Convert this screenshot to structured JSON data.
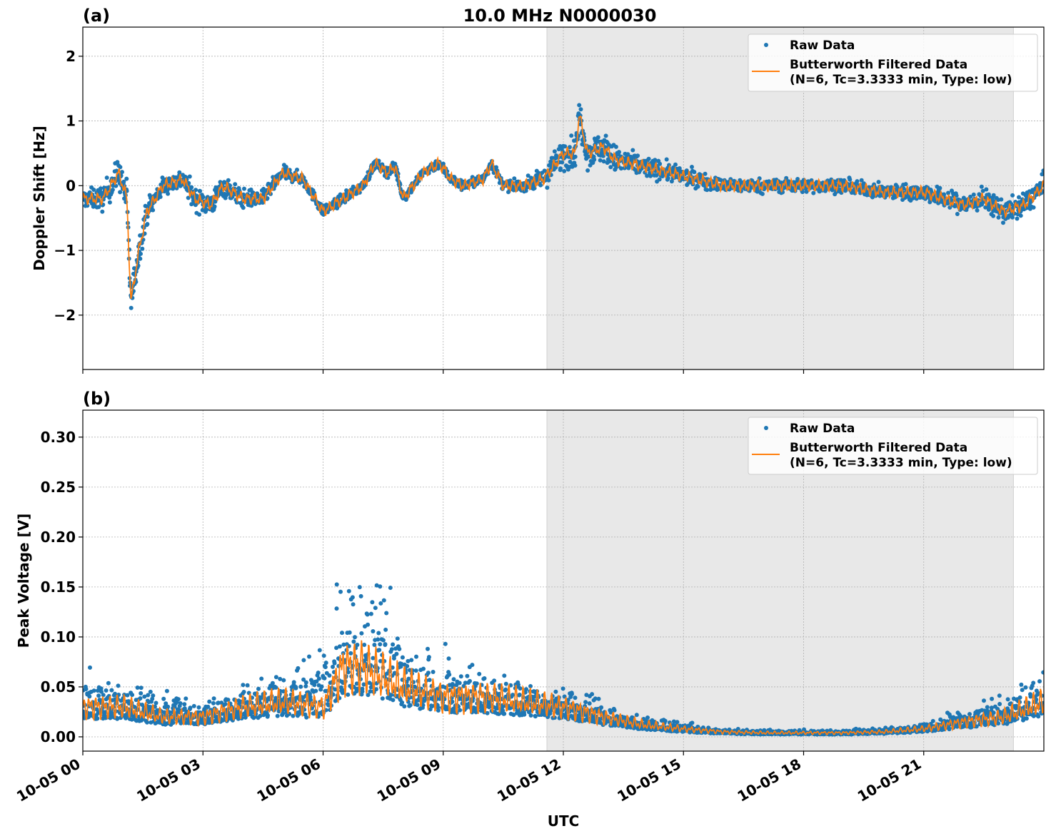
{
  "chart_data": [
    {
      "type": "scatter",
      "panel_label": "(a)",
      "title": "10.0 MHz N0000030",
      "xlabel": "",
      "ylabel": "Doppler Shift [Hz]",
      "xlim_hours": [
        0,
        24
      ],
      "ylim": [
        -2.84,
        2.45
      ],
      "yticks": [
        2,
        1,
        0,
        -1,
        -2
      ],
      "ytick_labels": [
        "2",
        "1",
        "0",
        "−1",
        "−2"
      ],
      "grid": true,
      "legend_position": "top-right",
      "legend": [
        "Raw Data",
        "Butterworth Filtered Data",
        "(N=6, Tc=3.3333 min, Type: low)"
      ],
      "shaded_region_hours": [
        11.59,
        23.24
      ],
      "filtered_keypoints": [
        [
          0,
          -0.2
        ],
        [
          0.5,
          -0.2
        ],
        [
          0.9,
          0.2
        ],
        [
          1.1,
          -0.2
        ],
        [
          1.2,
          -1.8
        ],
        [
          1.4,
          -1.0
        ],
        [
          1.6,
          -0.4
        ],
        [
          2.0,
          0.0
        ],
        [
          2.5,
          0.1
        ],
        [
          2.8,
          -0.2
        ],
        [
          3.2,
          -0.3
        ],
        [
          3.5,
          0.0
        ],
        [
          4.0,
          -0.2
        ],
        [
          4.5,
          -0.2
        ],
        [
          5.0,
          0.2
        ],
        [
          5.5,
          0.1
        ],
        [
          6.0,
          -0.4
        ],
        [
          6.5,
          -0.2
        ],
        [
          7.0,
          0.0
        ],
        [
          7.3,
          0.35
        ],
        [
          7.6,
          0.2
        ],
        [
          7.8,
          0.3
        ],
        [
          8.0,
          -0.2
        ],
        [
          8.5,
          0.2
        ],
        [
          8.9,
          0.35
        ],
        [
          9.2,
          0.1
        ],
        [
          9.5,
          0.0
        ],
        [
          10.0,
          0.1
        ],
        [
          10.2,
          0.35
        ],
        [
          10.5,
          0.0
        ],
        [
          11,
          0.0
        ],
        [
          11.5,
          0.1
        ],
        [
          12,
          0.5
        ],
        [
          12.3,
          0.5
        ],
        [
          12.4,
          1.1
        ],
        [
          12.6,
          0.5
        ],
        [
          13,
          0.6
        ],
        [
          13.3,
          0.4
        ],
        [
          14,
          0.3
        ],
        [
          15,
          0.15
        ],
        [
          16,
          0.0
        ],
        [
          17,
          0.0
        ],
        [
          18,
          0.0
        ],
        [
          19,
          0.0
        ],
        [
          20,
          -0.1
        ],
        [
          21,
          -0.1
        ],
        [
          22,
          -0.3
        ],
        [
          22.5,
          -0.2
        ],
        [
          23,
          -0.4
        ],
        [
          23.5,
          -0.3
        ],
        [
          24,
          0.0
        ]
      ],
      "raw_spread_keypoints": [
        [
          0,
          0.25
        ],
        [
          1.1,
          0.5
        ],
        [
          1.5,
          0.4
        ],
        [
          2,
          0.25
        ],
        [
          3,
          0.35
        ],
        [
          5,
          0.2
        ],
        [
          6,
          0.15
        ],
        [
          11,
          0.15
        ],
        [
          12,
          0.45
        ],
        [
          13,
          0.45
        ],
        [
          14,
          0.3
        ],
        [
          16,
          0.2
        ],
        [
          20,
          0.2
        ],
        [
          22,
          0.3
        ],
        [
          24,
          0.35
        ]
      ]
    },
    {
      "type": "scatter",
      "panel_label": "(b)",
      "xlabel": "UTC",
      "ylabel": "Peak Voltage [V]",
      "xlim_hours": [
        0,
        24
      ],
      "ylim": [
        -0.0143,
        0.327
      ],
      "yticks": [
        0.3,
        0.25,
        0.2,
        0.15,
        0.1,
        0.05,
        0.0
      ],
      "ytick_labels": [
        "0.30",
        "0.25",
        "0.20",
        "0.15",
        "0.10",
        "0.05",
        "0.00"
      ],
      "xtick_hours": [
        0,
        3,
        6,
        9,
        12,
        15,
        18,
        21
      ],
      "xtick_labels": [
        "10-05 00",
        "10-05 03",
        "10-05 06",
        "10-05 09",
        "10-05 12",
        "10-05 15",
        "10-05 18",
        "10-05 21"
      ],
      "grid": true,
      "legend_position": "top-right",
      "legend": [
        "Raw Data",
        "Butterworth Filtered Data",
        "(N=6, Tc=3.3333 min, Type: low)"
      ],
      "shaded_region_hours": [
        11.59,
        23.24
      ],
      "filtered_keypoints": [
        [
          0,
          0.03
        ],
        [
          1,
          0.03
        ],
        [
          2,
          0.02
        ],
        [
          3,
          0.02
        ],
        [
          4,
          0.03
        ],
        [
          5,
          0.035
        ],
        [
          6,
          0.03
        ],
        [
          6.5,
          0.07
        ],
        [
          7,
          0.07
        ],
        [
          7.5,
          0.06
        ],
        [
          8,
          0.05
        ],
        [
          9,
          0.04
        ],
        [
          10,
          0.04
        ],
        [
          11,
          0.035
        ],
        [
          12,
          0.03
        ],
        [
          13,
          0.02
        ],
        [
          14,
          0.012
        ],
        [
          15,
          0.008
        ],
        [
          16,
          0.005
        ],
        [
          17,
          0.004
        ],
        [
          18,
          0.004
        ],
        [
          19,
          0.004
        ],
        [
          20,
          0.005
        ],
        [
          21,
          0.008
        ],
        [
          22,
          0.015
        ],
        [
          23,
          0.02
        ],
        [
          24,
          0.035
        ]
      ],
      "raw_spread_keypoints": [
        [
          0,
          0.05
        ],
        [
          3,
          0.03
        ],
        [
          5,
          0.05
        ],
        [
          6.3,
          0.12
        ],
        [
          7.3,
          0.15
        ],
        [
          8,
          0.08
        ],
        [
          10,
          0.05
        ],
        [
          12,
          0.04
        ],
        [
          13,
          0.03
        ],
        [
          14,
          0.015
        ],
        [
          16,
          0.006
        ],
        [
          19,
          0.005
        ],
        [
          21,
          0.01
        ],
        [
          22,
          0.025
        ],
        [
          24,
          0.05
        ]
      ]
    }
  ],
  "colors": {
    "raw": "#1f77b4",
    "filtered": "#ff7f0e",
    "shade": "#e8e8e8",
    "grid": "#b0b0b0"
  }
}
